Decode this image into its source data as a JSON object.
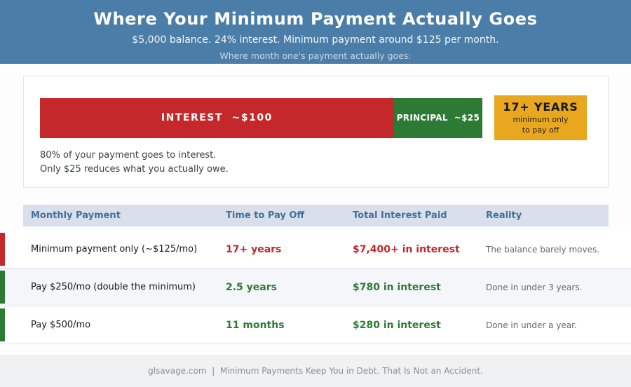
{
  "header": {
    "title": "Where Your Minimum Payment Actually Goes",
    "subtitle": "$5,000 balance. 24% interest. Minimum payment around $125 per month.",
    "tagline": "Where month one's payment actually goes:"
  },
  "breakdown": {
    "payoff_title": "17+ YEARS",
    "payoff_line1": "minimum only",
    "payoff_line2": "to pay off",
    "note_line1": "80% of your payment goes to interest.",
    "note_line2": "Only $25 reduces what you actually owe."
  },
  "table": {
    "columns": [
      "Monthly Payment",
      "Time to Pay Off",
      "Total Interest Paid",
      "Reality"
    ],
    "rows": [
      {
        "payment": "Minimum payment only (~$125/mo)",
        "time": "17+ years",
        "interest": "$7,400+ in interest",
        "reality": "The balance barely moves.",
        "tone": "bad"
      },
      {
        "payment": "Pay $250/mo (double the minimum)",
        "time": "2.5 years",
        "interest": "$780 in interest",
        "reality": "Done in under 3 years.",
        "tone": "good"
      },
      {
        "payment": "Pay $500/mo",
        "time": "11 months",
        "interest": "$280 in interest",
        "reality": "Done in under a year.",
        "tone": "good"
      }
    ]
  },
  "footer": {
    "text": "glsavage.com  |  Minimum Payments Keep You in Debt. That Is Not an Accident."
  },
  "colors": {
    "banner_blue": "#4a7ea8",
    "interest_red": "#c5282b",
    "principal_green": "#2d7a34",
    "payoff_gold": "#e8a71e",
    "table_header_bg": "#d9e0eb",
    "table_header_text": "#40719e"
  },
  "chart_data": [
    {
      "type": "bar",
      "orientation": "horizontal_stacked",
      "title": "Where month one's payment actually goes:",
      "series": [
        {
          "name": "Interest",
          "values": [
            100
          ],
          "color": "#c5282b",
          "label": "INTEREST  ~$100"
        },
        {
          "name": "Principal",
          "values": [
            25
          ],
          "color": "#2d7a34",
          "label": "PRINCIPAL  ~$25"
        }
      ],
      "annotations": [
        "17+ YEARS minimum only to pay off",
        "80% of your payment goes to interest.",
        "Only $25 reduces what you actually owe."
      ],
      "legend_position": "none",
      "grid": false
    },
    {
      "type": "table",
      "columns": [
        "Monthly Payment",
        "Time to Pay Off",
        "Total Interest Paid",
        "Reality"
      ],
      "rows": [
        [
          "Minimum payment only (~$125/mo)",
          "17+ years",
          "$7,400+ in interest",
          "The balance barely moves."
        ],
        [
          "Pay $250/mo (double the minimum)",
          "2.5 years",
          "$780 in interest",
          "Done in under 3 years."
        ],
        [
          "Pay $500/mo",
          "11 months",
          "$280 in interest",
          "Done in under a year."
        ]
      ]
    }
  ]
}
